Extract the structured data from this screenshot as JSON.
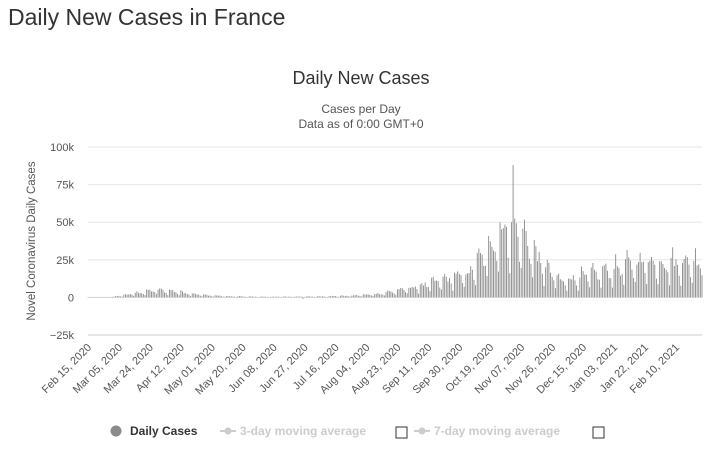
{
  "page": {
    "heading": "Daily New Cases in France"
  },
  "chart_data": {
    "type": "bar",
    "title": "Daily New Cases",
    "subtitle_lines": [
      "Cases per Day",
      "Data as of 0:00 GMT+0"
    ],
    "ylabel": "Novel Coronavirus Daily Cases",
    "xlabel": "",
    "ylim": [
      -25000,
      100000
    ],
    "y_ticks": [
      -25000,
      0,
      25000,
      50000,
      75000,
      100000
    ],
    "y_tick_labels": [
      "−25k",
      "0",
      "25k",
      "50k",
      "75k",
      "100k"
    ],
    "x_start": "2020-02-15",
    "x_end": "2021-02-26",
    "x_tick_labels": [
      "Feb 15, 2020",
      "Mar 05, 2020",
      "Mar 24, 2020",
      "Apr 12, 2020",
      "May 01, 2020",
      "May 20, 2020",
      "Jun 08, 2020",
      "Jun 27, 2020",
      "Jul 16, 2020",
      "Aug 04, 2020",
      "Aug 23, 2020",
      "Sep 11, 2020",
      "Sep 30, 2020",
      "Oct 19, 2020",
      "Nov 07, 2020",
      "Nov 26, 2020",
      "Dec 15, 2020",
      "Jan 03, 2021",
      "Jan 22, 2021",
      "Feb 10, 2021"
    ],
    "grid": true,
    "legend_position": "bottom",
    "colors": {
      "bars": "#8a8a8a",
      "grid": "#e6e6e6",
      "legend_disabled": "#cccccc",
      "legend_active": "#333333"
    },
    "series": [
      {
        "name": "Daily Cases",
        "note": "weekly level profile; bars show day-to-day variation around these levels",
        "weekly_points": [
          [
            "2020-02-15",
            0
          ],
          [
            "2020-03-01",
            300
          ],
          [
            "2020-03-15",
            2500
          ],
          [
            "2020-03-28",
            4500
          ],
          [
            "2020-04-10",
            3500
          ],
          [
            "2020-04-25",
            1500
          ],
          [
            "2020-05-10",
            700
          ],
          [
            "2020-06-01",
            400
          ],
          [
            "2020-07-01",
            500
          ],
          [
            "2020-07-25",
            1000
          ],
          [
            "2020-08-10",
            2000
          ],
          [
            "2020-08-25",
            4500
          ],
          [
            "2020-09-10",
            8000
          ],
          [
            "2020-09-25",
            12000
          ],
          [
            "2020-10-05",
            14000
          ],
          [
            "2020-10-15",
            25000
          ],
          [
            "2020-10-25",
            40000
          ],
          [
            "2020-11-02",
            45000
          ],
          [
            "2020-11-10",
            35000
          ],
          [
            "2020-11-20",
            20000
          ],
          [
            "2020-12-01",
            10000
          ],
          [
            "2020-12-15",
            13000
          ],
          [
            "2020-12-25",
            15000
          ],
          [
            "2021-01-05",
            18000
          ],
          [
            "2021-01-20",
            22000
          ],
          [
            "2021-02-05",
            21000
          ],
          [
            "2021-02-26",
            22000
          ]
        ],
        "spike": {
          "date": "2020-11-02",
          "value": 88000
        }
      }
    ]
  },
  "legend": {
    "items": [
      {
        "label": "Daily Cases",
        "active": true
      },
      {
        "label": "3-day moving average",
        "active": false
      },
      {
        "label": "7-day moving average",
        "active": false
      }
    ]
  }
}
